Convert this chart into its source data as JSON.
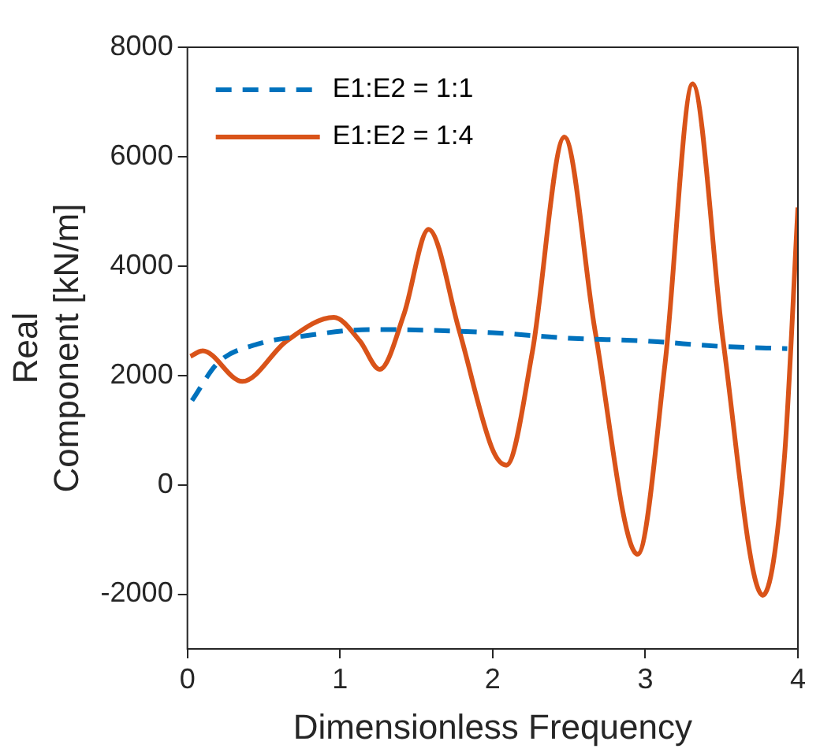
{
  "chart_data": {
    "type": "line",
    "xlabel": "Dimensionless Frequency",
    "ylabel": "Real\nComponent [kN/m]",
    "xlim": [
      0,
      4
    ],
    "xticks": [
      0,
      1,
      2,
      3,
      4
    ],
    "ylim": [
      -3000,
      8000
    ],
    "yticks": [
      -2000,
      0,
      2000,
      4000,
      6000,
      8000
    ],
    "grid": false,
    "legend": "top left",
    "marker": "none",
    "series": [
      {
        "name": "E1:E2 = 1:1",
        "color": "#0072bd",
        "line_style": "dashed",
        "x": [
          0.03,
          0.2,
          0.47,
          0.76,
          1.2,
          2.0,
          2.5,
          3.0,
          3.5,
          3.93
        ],
        "values": [
          1540,
          2230,
          2580,
          2720,
          2840,
          2780,
          2680,
          2630,
          2530,
          2490
        ]
      },
      {
        "name": "E1:E2 = 1:4",
        "color": "#d95319",
        "line_style": "solid",
        "x": [
          0.02,
          0.1,
          0.36,
          0.65,
          0.96,
          1.13,
          1.26,
          1.42,
          1.58,
          1.78,
          2.0,
          2.09,
          2.26,
          2.47,
          2.67,
          2.95,
          3.13,
          3.31,
          3.51,
          3.77,
          3.91,
          4.0
        ],
        "values": [
          2350,
          2450,
          1890,
          2630,
          3060,
          2630,
          2110,
          3130,
          4670,
          2830,
          640,
          360,
          2430,
          6360,
          2830,
          -1270,
          2230,
          7330,
          2630,
          -2020,
          440,
          5070
        ]
      }
    ]
  }
}
